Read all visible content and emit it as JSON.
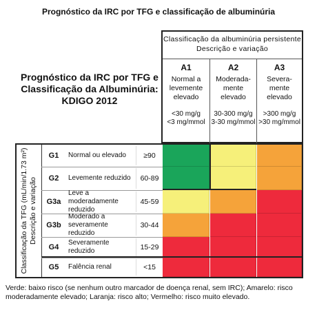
{
  "title": "Prognóstico da IRC por TFG e classificação de albuminúria",
  "kdigo_label": [
    "Prognóstico da IRC por TFG e",
    "Classificação da Albuminúria:",
    "KDIGO 2012"
  ],
  "albuminuria_header": [
    "Classificação da albuminúria persistente",
    "Descrição e variação"
  ],
  "columns": [
    {
      "code": "A1",
      "desc": "Normal a\nlevemente\nelevado",
      "range": "<30 mg/g\n<3 mg/mmol"
    },
    {
      "code": "A2",
      "desc": "Modera­da-\nmente\nelevado",
      "range": "30-300 mg/g\n3-30 mg/mmol"
    },
    {
      "code": "A3",
      "desc": "Severa-\nmente\nelevado",
      "range": ">300 mg/g\n>30 mg/mmol"
    }
  ],
  "gfr_side_label": "Classificação da TFG (mL/min/1.73 m²)\nDescrição e variação",
  "rows": [
    {
      "code": "G1",
      "desc": "Normal ou elevado",
      "range": "≥90",
      "risk": [
        "green",
        "yellow",
        "orange"
      ]
    },
    {
      "code": "G2",
      "desc": "Levemente reduzido",
      "range": "60-89",
      "risk": [
        "green",
        "yellow",
        "orange"
      ]
    },
    {
      "code": "G3a",
      "desc": "Leve a moderadamente reduzido",
      "range": "45-59",
      "risk": [
        "yellow",
        "orange",
        "red"
      ]
    },
    {
      "code": "G3b",
      "desc": "Moderado a severamente reduzido",
      "range": "30-44",
      "risk": [
        "orange",
        "red",
        "red"
      ]
    },
    {
      "code": "G4",
      "desc": "Severamente reduzido",
      "range": "15-29",
      "risk": [
        "red",
        "red",
        "red"
      ]
    },
    {
      "code": "G5",
      "desc": "Falência renal",
      "range": "<15",
      "risk": [
        "red",
        "red",
        "red"
      ]
    }
  ],
  "colors": {
    "green": "#1aa55a",
    "yellow": "#f6f07a",
    "orange": "#f5a33a",
    "red": "#ee2a3c"
  },
  "footer": "Verde: baixo risco (se nenhum outro marcador de doença renal, sem IRC); Amarelo: risco moderadamente elevado; Laranja: risco alto; Vermelho: risco muito elevado."
}
